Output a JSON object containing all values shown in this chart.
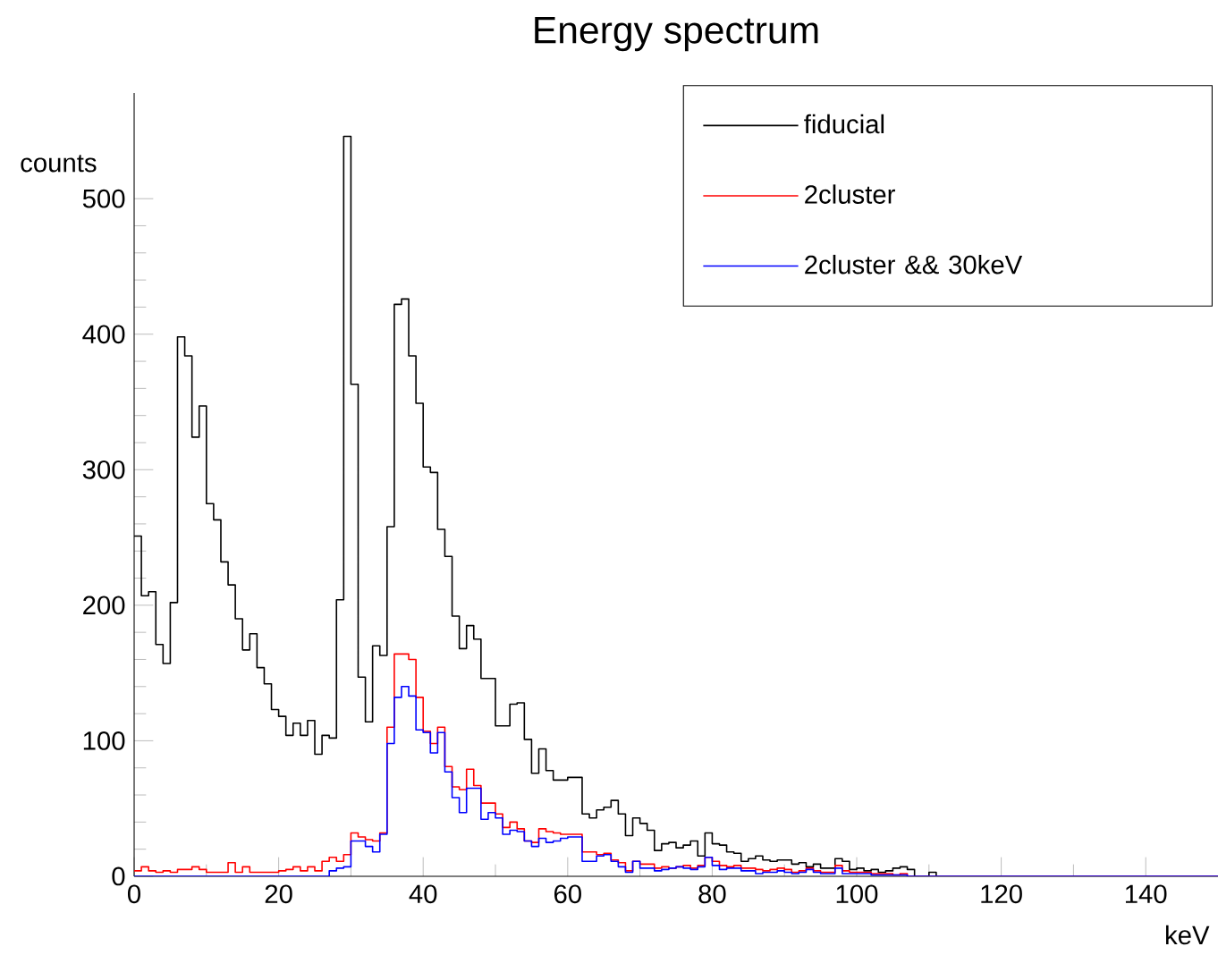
{
  "chart_data": {
    "type": "histogram",
    "title": "Energy spectrum",
    "xlabel": "keV",
    "ylabel": "counts",
    "bins": [
      0,
      1,
      2,
      3,
      4,
      5,
      6,
      7,
      8,
      9,
      10,
      11,
      12,
      13,
      14,
      15,
      16,
      17,
      18,
      19,
      20,
      21,
      22,
      23,
      24,
      25,
      26,
      27,
      28,
      29,
      30,
      31,
      32,
      33,
      34,
      35,
      36,
      37,
      38,
      39,
      40,
      41,
      42,
      43,
      44,
      45,
      46,
      47,
      48,
      49,
      50,
      51,
      52,
      53,
      54,
      55,
      56,
      57,
      58,
      59,
      60,
      61,
      62,
      63,
      64,
      65,
      66,
      67,
      68,
      69,
      70,
      71,
      72,
      73,
      74,
      75,
      76,
      77,
      78,
      79,
      80,
      81,
      82,
      83,
      84,
      85,
      86,
      87,
      88,
      89,
      90,
      91,
      92,
      93,
      94,
      95,
      96,
      97,
      98,
      99,
      100,
      101,
      102,
      103,
      104,
      105,
      106,
      107,
      108,
      109,
      110,
      111,
      112,
      113,
      114,
      115,
      116,
      117,
      118,
      119,
      120,
      121,
      122,
      123,
      124,
      125,
      126,
      127,
      128,
      129,
      130,
      131,
      132,
      133,
      134,
      135,
      136,
      137,
      138,
      139,
      140,
      141,
      142,
      143,
      144,
      145,
      146,
      147,
      148,
      149,
      150
    ],
    "series": [
      {
        "name": "fiducial",
        "color": "#000000",
        "values": [
          251,
          207,
          210,
          171,
          157,
          202,
          398,
          384,
          324,
          347,
          275,
          263,
          232,
          215,
          190,
          167,
          179,
          154,
          142,
          123,
          118,
          104,
          113,
          104,
          115,
          90,
          104,
          102,
          204,
          546,
          363,
          147,
          114,
          170,
          163,
          258,
          422,
          426,
          384,
          349,
          302,
          298,
          256,
          236,
          192,
          168,
          185,
          175,
          146,
          146,
          111,
          111,
          127,
          128,
          101,
          76,
          94,
          78,
          71,
          71,
          73,
          73,
          46,
          43,
          49,
          51,
          56,
          46,
          30,
          43,
          39,
          34,
          19,
          24,
          25,
          21,
          23,
          26,
          15,
          32,
          24,
          23,
          18,
          17,
          11,
          13,
          15,
          12,
          11,
          12,
          12,
          9,
          10,
          7,
          9,
          6,
          6,
          13,
          11,
          5,
          6,
          4,
          5,
          3,
          4,
          6,
          7,
          5,
          0,
          0,
          3,
          0,
          0,
          0,
          0,
          0,
          0,
          0,
          0,
          0,
          0,
          0,
          0,
          0,
          0,
          0,
          0,
          0,
          0,
          0,
          0,
          0,
          0,
          0,
          0,
          0,
          0,
          0,
          0,
          0,
          0,
          0,
          0,
          0,
          0,
          0,
          0,
          0,
          0,
          0
        ]
      },
      {
        "name": "2cluster",
        "color": "#ff0000",
        "values": [
          4,
          7,
          4,
          3,
          4,
          3,
          5,
          5,
          7,
          5,
          3,
          3,
          3,
          10,
          3,
          7,
          3,
          3,
          3,
          3,
          4,
          5,
          7,
          4,
          7,
          4,
          11,
          14,
          11,
          16,
          32,
          29,
          27,
          26,
          32,
          110,
          164,
          164,
          160,
          132,
          107,
          98,
          110,
          81,
          66,
          64,
          79,
          67,
          54,
          54,
          46,
          36,
          40,
          35,
          26,
          25,
          35,
          33,
          32,
          31,
          31,
          31,
          18,
          18,
          16,
          17,
          12,
          10,
          4,
          11,
          9,
          9,
          6,
          7,
          6,
          7,
          8,
          6,
          8,
          14,
          11,
          8,
          7,
          8,
          6,
          6,
          5,
          4,
          5,
          6,
          5,
          3,
          4,
          6,
          4,
          3,
          3,
          8,
          4,
          3,
          3,
          3,
          2,
          2,
          2,
          1,
          2,
          0,
          0,
          0,
          0,
          0,
          0,
          0,
          0,
          0,
          0,
          0,
          0,
          0,
          0,
          0,
          0,
          0,
          0,
          0,
          0,
          0,
          0,
          0,
          0,
          0,
          0,
          0,
          0,
          0,
          0,
          0,
          0,
          0,
          0,
          0,
          0,
          0,
          0,
          0,
          0,
          0,
          0,
          0
        ]
      },
      {
        "name": "2cluster && 30keV",
        "color": "#0000ff",
        "values": [
          0,
          0,
          0,
          0,
          0,
          0,
          0,
          0,
          0,
          0,
          0,
          0,
          0,
          0,
          0,
          0,
          0,
          0,
          0,
          0,
          0,
          0,
          0,
          0,
          0,
          0,
          0,
          4,
          6,
          7,
          26,
          26,
          22,
          18,
          31,
          98,
          132,
          140,
          133,
          108,
          106,
          91,
          106,
          77,
          58,
          47,
          65,
          65,
          42,
          47,
          43,
          31,
          34,
          33,
          26,
          22,
          28,
          25,
          26,
          28,
          29,
          29,
          11,
          11,
          15,
          16,
          11,
          7,
          3,
          11,
          6,
          6,
          4,
          5,
          6,
          7,
          6,
          5,
          7,
          14,
          8,
          5,
          6,
          6,
          4,
          4,
          2,
          3,
          3,
          4,
          3,
          2,
          3,
          5,
          3,
          2,
          2,
          6,
          2,
          2,
          2,
          2,
          1,
          1,
          1,
          1,
          1,
          0,
          0,
          0,
          0,
          0,
          0,
          0,
          0,
          0,
          0,
          0,
          0,
          0,
          0,
          0,
          0,
          0,
          0,
          0,
          0,
          0,
          0,
          0,
          0,
          0,
          0,
          0,
          0,
          0,
          0,
          0,
          0,
          0,
          0,
          0,
          0,
          0,
          0,
          0,
          0,
          0,
          0,
          0
        ]
      }
    ],
    "xlim": [
      0,
      150
    ],
    "xticks": [
      0,
      20,
      40,
      60,
      80,
      100,
      120,
      140
    ],
    "ylim": [
      0,
      578
    ],
    "yticks": [
      0,
      100,
      200,
      300,
      400,
      500
    ],
    "legend": "top right",
    "grid": false
  }
}
